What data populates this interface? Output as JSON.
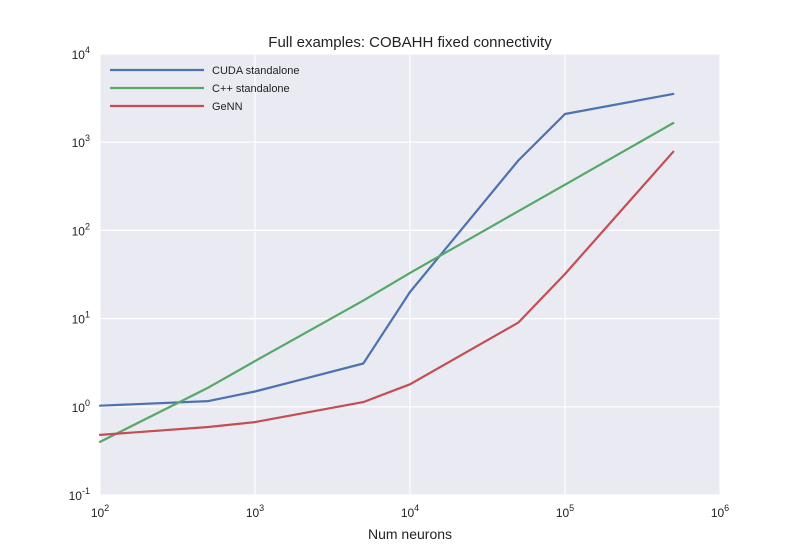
{
  "chart_data": {
    "type": "line",
    "title": "Full examples: COBAHH fixed connectivity",
    "xlabel": "Num neurons",
    "ylabel": "",
    "xscale": "log",
    "yscale": "log",
    "xlim": [
      100,
      1000000
    ],
    "ylim": [
      0.1,
      10000
    ],
    "grid": true,
    "legend_position": "top-left",
    "x_ticks": [
      {
        "value": 100,
        "base": "10",
        "exp": "2"
      },
      {
        "value": 1000,
        "base": "10",
        "exp": "3"
      },
      {
        "value": 10000,
        "base": "10",
        "exp": "4"
      },
      {
        "value": 100000,
        "base": "10",
        "exp": "5"
      },
      {
        "value": 1000000,
        "base": "10",
        "exp": "6"
      }
    ],
    "y_ticks": [
      {
        "value": 0.1,
        "base": "10",
        "exp": "-1"
      },
      {
        "value": 1,
        "base": "10",
        "exp": "0"
      },
      {
        "value": 10,
        "base": "10",
        "exp": "1"
      },
      {
        "value": 100,
        "base": "10",
        "exp": "2"
      },
      {
        "value": 1000,
        "base": "10",
        "exp": "3"
      },
      {
        "value": 10000,
        "base": "10",
        "exp": "4"
      }
    ],
    "series": [
      {
        "name": "CUDA standalone",
        "color": "#4c72b0",
        "x": [
          100,
          500,
          1000,
          5000,
          10000,
          50000,
          100000,
          500000
        ],
        "y": [
          1.03,
          1.16,
          1.49,
          3.1,
          20,
          620,
          2090,
          3530
        ]
      },
      {
        "name": "C++ standalone",
        "color": "#55a868",
        "x": [
          100,
          500,
          1000,
          5000,
          10000,
          50000,
          100000,
          500000
        ],
        "y": [
          0.4,
          1.65,
          3.3,
          16,
          33,
          165,
          330,
          1650
        ]
      },
      {
        "name": "GeNN",
        "color": "#c44e52",
        "x": [
          100,
          500,
          1000,
          5000,
          10000,
          50000,
          100000,
          500000
        ],
        "y": [
          0.48,
          0.59,
          0.67,
          1.13,
          1.8,
          9,
          32,
          780
        ]
      }
    ]
  }
}
